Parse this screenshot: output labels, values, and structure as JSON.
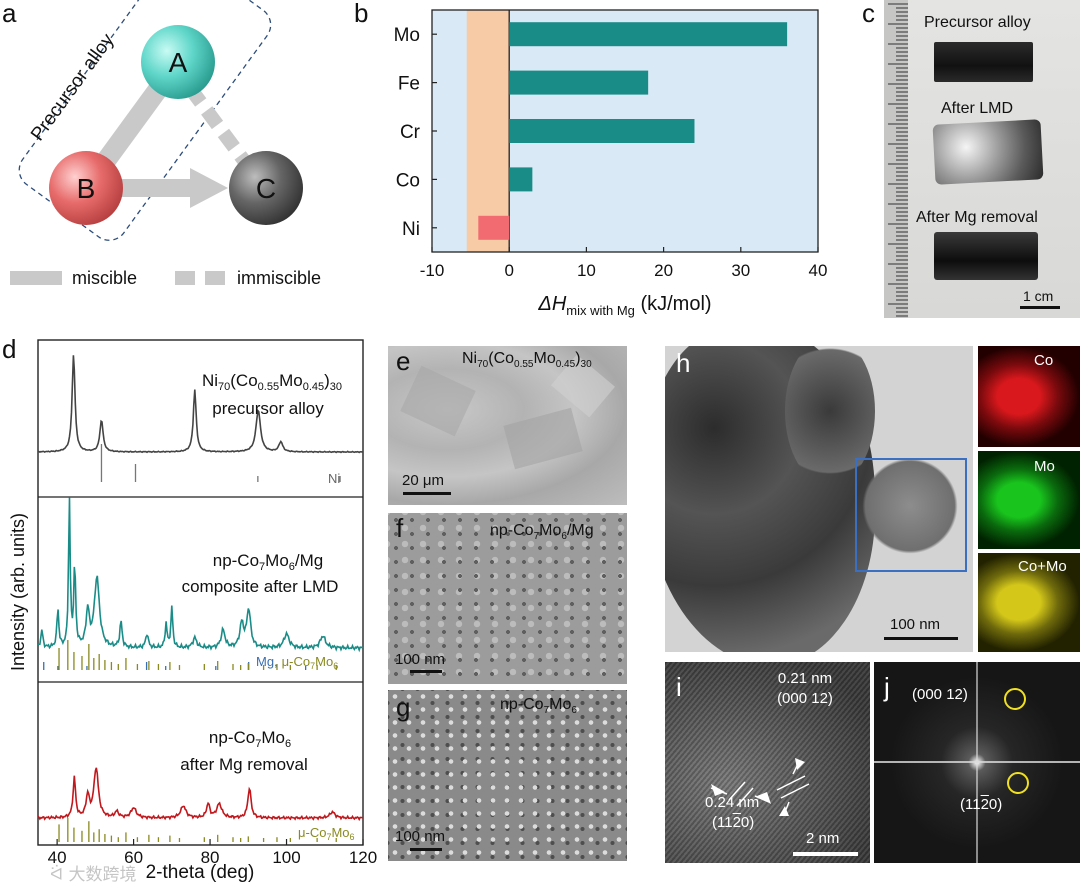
{
  "panels": {
    "a": {
      "label": "a",
      "group_label": "Precursor alloy",
      "nodes": [
        "A",
        "B",
        "C"
      ],
      "legend": {
        "miscible": "miscible",
        "immiscible": "immiscible"
      },
      "colors": {
        "A": "#5fd6c9",
        "B": "#e76b6b",
        "C": "#555555"
      }
    },
    "b": {
      "label": "b"
    },
    "c": {
      "label": "c",
      "captions": [
        "Precursor alloy",
        "After LMD",
        "After Mg removal"
      ],
      "scale": "1 cm"
    },
    "d": {
      "label": "d",
      "ylabel": "Intensity (arb. units)",
      "xlabel": "2-theta (deg)",
      "xticks": [
        "40",
        "60",
        "80",
        "100",
        "120"
      ],
      "traces": [
        {
          "name_main": "Ni",
          "sub1": "70",
          "mid": "(Co",
          "sub2": "0.55",
          "mid2": "Mo",
          "sub3": "0.45",
          "tail": ")",
          "sub4": "30",
          "line2": "precursor alloy",
          "ref": "Ni",
          "color": "#444444"
        },
        {
          "line1a": "np-Co",
          "s1": "7",
          "line1b": "Mo",
          "s2": "6",
          "line1c": "/Mg",
          "line2": "composite after LMD",
          "ref1": "Mg,",
          "ref2a": "μ-Co",
          "ref2s1": "7",
          "ref2b": "Mo",
          "ref2s2": "6",
          "color": "#1a8c88"
        },
        {
          "line1a": "np-Co",
          "s1": "7",
          "line1b": "Mo",
          "s2": "6",
          "line2": "after Mg removal",
          "ref2a": "μ-Co",
          "ref2s1": "7",
          "ref2b": "Mo",
          "ref2s2": "6",
          "color": "#c0181c"
        }
      ]
    },
    "e": {
      "label": "e",
      "t1": "Ni",
      "s1": "70",
      "t2": "(Co",
      "s2": "0.55",
      "t3": "Mo",
      "s3": "0.45",
      "t4": ")",
      "s4": "30",
      "scale": "20 μm"
    },
    "f": {
      "label": "f",
      "t1": "np-Co",
      "s1": "7",
      "t2": "Mo",
      "s2": "6",
      "t3": "/Mg",
      "scale": "100 nm"
    },
    "g": {
      "label": "g",
      "t1": "np-Co",
      "s1": "7",
      "t2": "Mo",
      "s2": "6",
      "scale": "100 nm"
    },
    "h": {
      "label": "h",
      "scale": "100 nm",
      "maps": [
        "Co",
        "Mo",
        "Co+Mo"
      ]
    },
    "i": {
      "label": "i",
      "d1": "0.21 nm",
      "p1": "(000 12)",
      "d2": "0.24 nm",
      "p2": "(11",
      "p2bar": "2",
      "p2end": "0)",
      "scale": "2 nm"
    },
    "j": {
      "label": "j",
      "s1": "(000 12)",
      "s2a": "(11",
      "s2bar": "2",
      "s2b": "0)"
    }
  },
  "watermark": "大数跨境",
  "chart_data": {
    "type": "bar",
    "orientation": "horizontal",
    "categories": [
      "Mo",
      "Fe",
      "Cr",
      "Co",
      "Ni"
    ],
    "values": [
      36,
      18,
      24,
      3,
      -4
    ],
    "xlabel_main": "ΔH",
    "xlabel_sub": "mix with Mg",
    "xlabel_unit": " (kJ/mol)",
    "xlim": [
      -10,
      40
    ],
    "xticks": [
      -10,
      0,
      10,
      20,
      30,
      40
    ],
    "positive_color": "#1a8c88",
    "negative_color": "#f16b70",
    "miscible_region": [
      -5.5,
      0
    ],
    "miscible_color": "#f6cba6",
    "immiscible_color": "#d9e9f6"
  }
}
